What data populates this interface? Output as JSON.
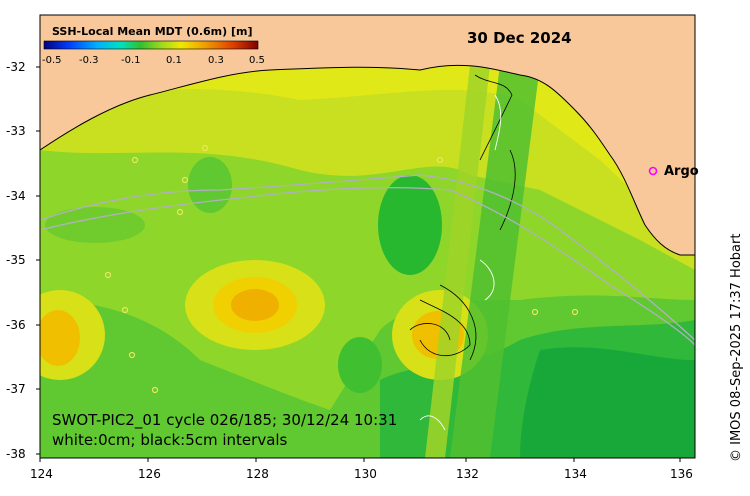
{
  "title": {
    "colorbar_label": "SSH-Local Mean MDT (0.6m) [m]",
    "date": "30 Dec 2024"
  },
  "colorbar": {
    "ticks": [
      "-0.5",
      "-0.3",
      "-0.1",
      "0.1",
      "0.3",
      "0.5"
    ],
    "colors": [
      "#00008b",
      "#0030e0",
      "#0088ff",
      "#00c8ff",
      "#00d890",
      "#20c020",
      "#80d820",
      "#d0e010",
      "#f0e000",
      "#f0a000",
      "#e05000",
      "#c01000",
      "#800000"
    ]
  },
  "axes": {
    "x_ticks": [
      "124",
      "126",
      "128",
      "130",
      "132",
      "134",
      "136"
    ],
    "y_ticks": [
      "-32",
      "-33",
      "-34",
      "-35",
      "-36",
      "-37",
      "-38"
    ]
  },
  "legend": {
    "argo_marker": "o",
    "argo_label": "Argo"
  },
  "info": {
    "line1": "SWOT-PIC2_01 cycle 026/185; 30/12/24 10:31",
    "line2": "white:0cm; black:5cm intervals"
  },
  "credit": "© IMOS 08-Sep-2025 17:37 Hobart",
  "colors": {
    "land": "#f8c89a",
    "ocean_base": "#8ed62a",
    "accent_argo": "#ff00ff"
  }
}
